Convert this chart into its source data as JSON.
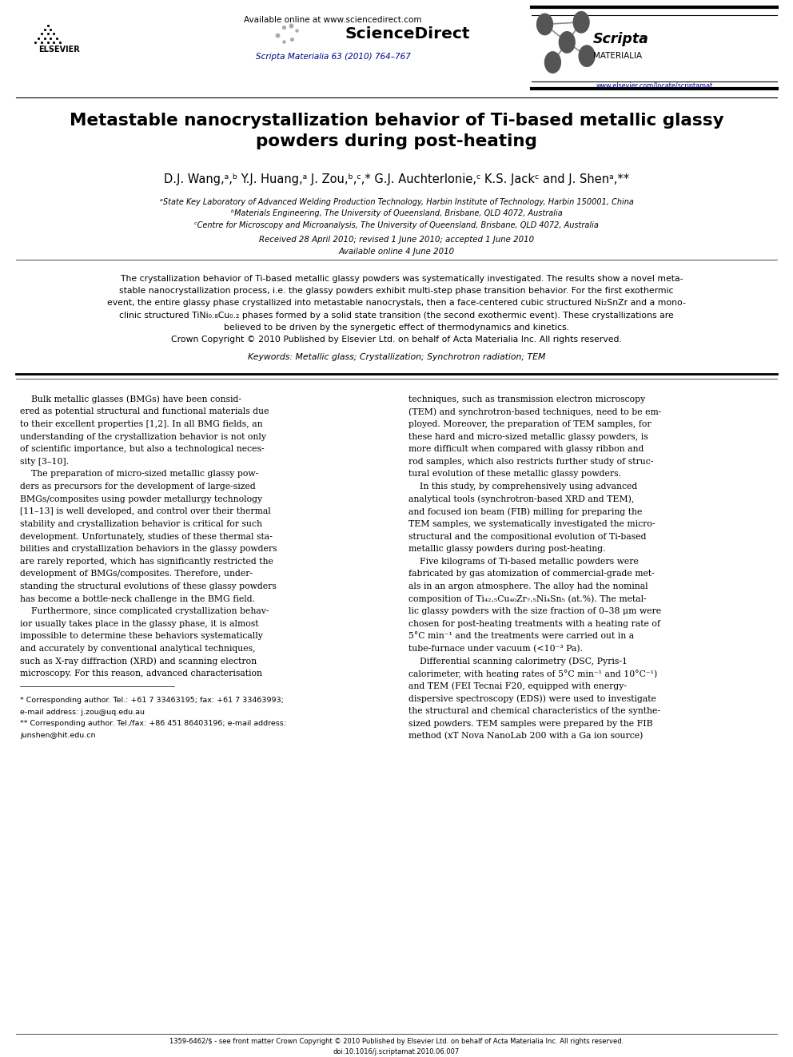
{
  "page_width": 9.92,
  "page_height": 13.23,
  "bg_color": "#ffffff",
  "title": "Metastable nanocrystallization behavior of Ti-based metallic glassy\npowders during post-heating",
  "affil_a": "ᵃState Key Laboratory of Advanced Welding Production Technology, Harbin Institute of Technology, Harbin 150001, China",
  "affil_b": "ᵇMaterials Engineering, The University of Queensland, Brisbane, QLD 4072, Australia",
  "affil_c": "ᶜCentre for Microscopy and Microanalysis, The University of Queensland, Brisbane, QLD 4072, Australia",
  "received": "Received 28 April 2010; revised 1 June 2010; accepted 1 June 2010",
  "available": "Available online 4 June 2010",
  "header_url": "Available online at www.sciencedirect.com",
  "journal_ref": "Scripta Materialia 63 (2010) 764–767",
  "elsevier_url": "www.elsevier.com/locate/scriptamat",
  "keywords": "Keywords: Metallic glass; Crystallization; Synchrotron radiation; TEM",
  "footnote_star": "* Corresponding author. Tel.: +61 7 33463195; fax: +61 7 33463993;",
  "footnote_star2": "e-mail address: j.zou@uq.edu.au",
  "footnote_dstar": "** Corresponding author. Tel./fax: +86 451 86403196; e-mail address:",
  "footnote_dstar2": "junshen@hit.edu.cn",
  "footer_issn": "1359-6462/$ - see front matter Crown Copyright © 2010 Published by Elsevier Ltd. on behalf of Acta Materialia Inc. All rights reserved.",
  "footer_doi": "doi:10.1016/j.scriptamat.2010.06.007",
  "link_color": "#00008B",
  "text_color": "#000000",
  "title_color": "#000000",
  "abstract_lines": [
    "    The crystallization behavior of Ti-based metallic glassy powders was systematically investigated. The results show a novel meta-",
    "stable nanocrystallization process, i.e. the glassy powders exhibit multi-step phase transition behavior. For the first exothermic",
    "event, the entire glassy phase crystallized into metastable nanocrystals, then a face-centered cubic structured Ni₂SnZr and a mono-",
    "clinic structured TiNi₀.₈Cu₀.₂ phases formed by a solid state transition (the second exothermic event). These crystallizations are",
    "believed to be driven by the synergetic effect of thermodynamics and kinetics.",
    "Crown Copyright © 2010 Published by Elsevier Ltd. on behalf of Acta Materialia Inc. All rights reserved."
  ],
  "col1_text": [
    "    Bulk metallic glasses (BMGs) have been consid-",
    "ered as potential structural and functional materials due",
    "to their excellent properties [1,2]. In all BMG fields, an",
    "understanding of the crystallization behavior is not only",
    "of scientific importance, but also a technological neces-",
    "sity [3–10].",
    "    The preparation of micro-sized metallic glassy pow-",
    "ders as precursors for the development of large-sized",
    "BMGs/composites using powder metallurgy technology",
    "[11–13] is well developed, and control over their thermal",
    "stability and crystallization behavior is critical for such",
    "development. Unfortunately, studies of these thermal sta-",
    "bilities and crystallization behaviors in the glassy powders",
    "are rarely reported, which has significantly restricted the",
    "development of BMGs/composites. Therefore, under-",
    "standing the structural evolutions of these glassy powders",
    "has become a bottle-neck challenge in the BMG field.",
    "    Furthermore, since complicated crystallization behav-",
    "ior usually takes place in the glassy phase, it is almost",
    "impossible to determine these behaviors systematically",
    "and accurately by conventional analytical techniques,",
    "such as X-ray diffraction (XRD) and scanning electron",
    "microscopy. For this reason, advanced characterisation"
  ],
  "col2_text": [
    "techniques, such as transmission electron microscopy",
    "(TEM) and synchrotron-based techniques, need to be em-",
    "ployed. Moreover, the preparation of TEM samples, for",
    "these hard and micro-sized metallic glassy powders, is",
    "more difficult when compared with glassy ribbon and",
    "rod samples, which also restricts further study of struc-",
    "tural evolution of these metallic glassy powders.",
    "    In this study, by comprehensively using advanced",
    "analytical tools (synchrotron-based XRD and TEM),",
    "and focused ion beam (FIB) milling for preparing the",
    "TEM samples, we systematically investigated the micro-",
    "structural and the compositional evolution of Ti-based",
    "metallic glassy powders during post-heating.",
    "    Five kilograms of Ti-based metallic powders were",
    "fabricated by gas atomization of commercial-grade met-",
    "als in an argon atmosphere. The alloy had the nominal",
    "composition of Ti₄₂.₅Cu₄₀Zr₇.₅Ni₄Sn₅ (at.%). The metal-",
    "lic glassy powders with the size fraction of 0–38 μm were",
    "chosen for post-heating treatments with a heating rate of",
    "5°C min⁻¹ and the treatments were carried out in a",
    "tube-furnace under vacuum (<10⁻³ Pa).",
    "    Differential scanning calorimetry (DSC, Pyris-1",
    "calorimeter, with heating rates of 5°C min⁻¹ and 10°C⁻¹)",
    "and TEM (FEI Tecnai F20, equipped with energy-",
    "dispersive spectroscopy (EDS)) were used to investigate",
    "the structural and chemical characteristics of the synthe-",
    "sized powders. TEM samples were prepared by the FIB",
    "method (xT Nova NanoLab 200 with a Ga ion source)"
  ]
}
